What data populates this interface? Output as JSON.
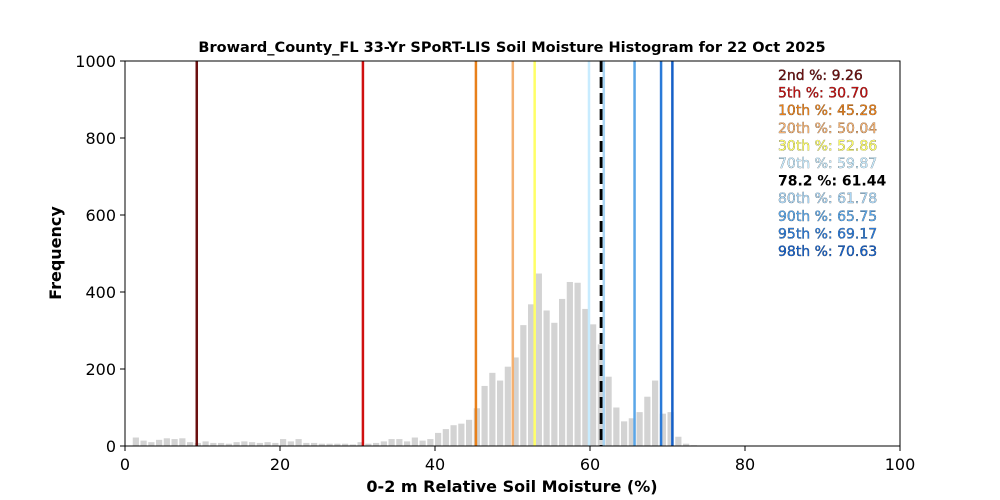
{
  "chart_data": {
    "type": "bar",
    "title": "Broward_County_FL 33-Yr SPoRT-LIS Soil Moisture Histogram for 22 Oct 2025",
    "xlabel": "0-2 m Relative Soil Moisture (%)",
    "ylabel": "Frequency",
    "xlim": [
      0,
      100
    ],
    "ylim": [
      0,
      1000
    ],
    "xticks": [
      "0",
      "20",
      "40",
      "60",
      "80",
      "100"
    ],
    "yticks": [
      "0",
      "200",
      "400",
      "600",
      "800",
      "1000"
    ],
    "grid": false,
    "bar_color": "#d3d3d3",
    "bin_width": 1,
    "bin_starts": [
      1,
      2,
      3,
      4,
      5,
      6,
      7,
      8,
      9,
      10,
      11,
      12,
      13,
      14,
      15,
      16,
      17,
      18,
      19,
      20,
      21,
      22,
      23,
      24,
      25,
      26,
      27,
      28,
      29,
      30,
      31,
      32,
      33,
      34,
      35,
      36,
      37,
      38,
      39,
      40,
      41,
      42,
      43,
      44,
      45,
      46,
      47,
      48,
      49,
      50,
      51,
      52,
      53,
      54,
      55,
      56,
      57,
      58,
      59,
      60,
      61,
      62,
      63,
      64,
      65,
      66,
      67,
      68,
      69,
      70,
      71,
      72,
      73
    ],
    "frequencies": [
      22,
      14,
      10,
      16,
      20,
      18,
      20,
      10,
      8,
      12,
      8,
      8,
      6,
      10,
      12,
      10,
      8,
      10,
      8,
      18,
      12,
      18,
      8,
      8,
      6,
      6,
      6,
      6,
      4,
      10,
      6,
      8,
      12,
      18,
      18,
      12,
      22,
      14,
      18,
      34,
      44,
      54,
      58,
      68,
      98,
      156,
      190,
      170,
      206,
      230,
      314,
      368,
      448,
      352,
      320,
      382,
      426,
      424,
      356,
      316,
      264,
      180,
      100,
      64,
      72,
      88,
      128,
      170,
      84,
      88,
      24,
      6,
      2
    ],
    "percentile_lines": [
      {
        "label": "2nd %",
        "value": 9.26,
        "value_text": "9.26",
        "color": "#6b0f0f",
        "style": "solid"
      },
      {
        "label": "5th %",
        "value": 30.7,
        "value_text": "30.70",
        "color": "#d01010",
        "style": "solid"
      },
      {
        "label": "10th %",
        "value": 45.28,
        "value_text": "45.28",
        "color": "#e8801a",
        "style": "solid"
      },
      {
        "label": "20th %",
        "value": 50.04,
        "value_text": "50.04",
        "color": "#f4b070",
        "style": "solid"
      },
      {
        "label": "30th %",
        "value": 52.86,
        "value_text": "52.86",
        "color": "#ffff66",
        "style": "solid"
      },
      {
        "label": "70th %",
        "value": 59.87,
        "value_text": "59.87",
        "color": "#c8ecff",
        "style": "solid"
      },
      {
        "label": "78.2 %",
        "value": 61.44,
        "value_text": "61.44",
        "color": "#000000",
        "style": "dashed"
      },
      {
        "label": "80th %",
        "value": 61.78,
        "value_text": "61.78",
        "color": "#aad6f5",
        "style": "solid"
      },
      {
        "label": "90th %",
        "value": 65.75,
        "value_text": "65.75",
        "color": "#5aa6e8",
        "style": "solid"
      },
      {
        "label": "95th %",
        "value": 69.17,
        "value_text": "69.17",
        "color": "#2a7ad8",
        "style": "solid"
      },
      {
        "label": "98th %",
        "value": 70.63,
        "value_text": "70.63",
        "color": "#1560c8",
        "style": "solid"
      }
    ],
    "legend": {
      "placement": "top-right",
      "entries": [
        {
          "text": "2nd %: 9.26",
          "color": "#6b0f0f",
          "bold": false
        },
        {
          "text": "5th %: 30.70",
          "color": "#c01010",
          "bold": false
        },
        {
          "text": "10th %: 45.28",
          "color": "#e8801a",
          "bold": false
        },
        {
          "text": "20th %: 50.04",
          "color": "#f4b070",
          "bold": false
        },
        {
          "text": "30th %: 52.86",
          "color": "#ffff66",
          "bold": false
        },
        {
          "text": "70th %: 59.87",
          "color": "#c8ecff",
          "bold": false
        },
        {
          "text": "78.2 %: 61.44",
          "color": "#000000",
          "bold": true
        },
        {
          "text": "80th %: 61.78",
          "color": "#aad6f5",
          "bold": false
        },
        {
          "text": "90th %: 65.75",
          "color": "#5aa6e8",
          "bold": false
        },
        {
          "text": "95th %: 69.17",
          "color": "#2a7ad8",
          "bold": false
        },
        {
          "text": "98th %: 70.63",
          "color": "#1560c8",
          "bold": false
        }
      ]
    }
  }
}
